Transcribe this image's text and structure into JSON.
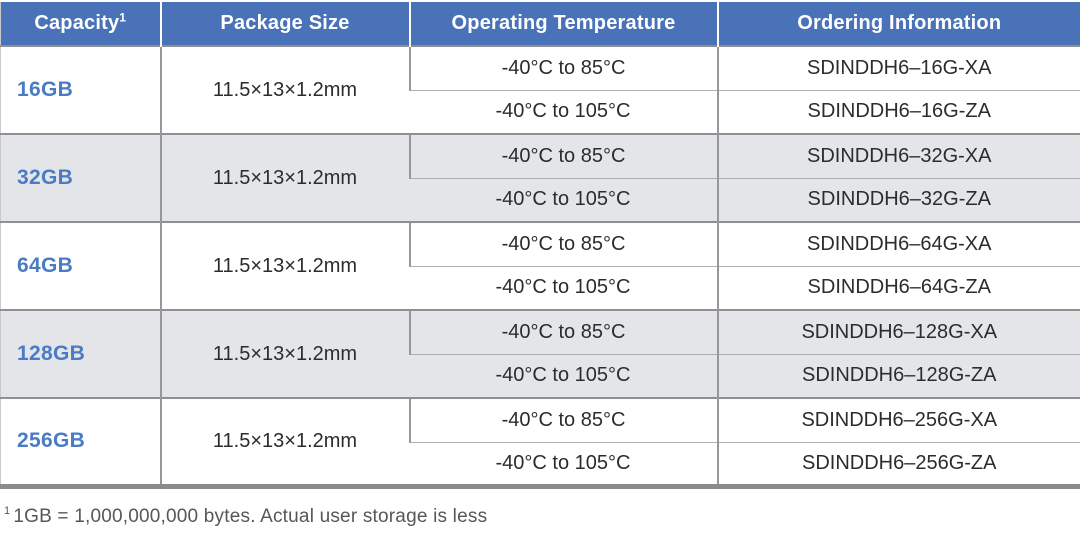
{
  "colors": {
    "header_bg": "#4A72B8",
    "header_text": "#FFFFFF",
    "capacity_text": "#4A7BC4",
    "body_text": "#2B2C30",
    "alt_row_bg": "#E3E5E8",
    "border_gray": "#98989B",
    "footnote_text": "#56575B"
  },
  "table": {
    "headers": [
      {
        "label": "Capacity",
        "superscript": "1"
      },
      {
        "label": "Package Size"
      },
      {
        "label": "Operating Temperature"
      },
      {
        "label": "Ordering Information"
      }
    ],
    "groups": [
      {
        "capacity": "16GB",
        "package_size": "11.5×13×1.2mm",
        "variants": [
          {
            "temperature": "-40°C to 85°C",
            "ordering": "SDINDDH6–16G-XA"
          },
          {
            "temperature": "-40°C to 105°C",
            "ordering": "SDINDDH6–16G-ZA"
          }
        ]
      },
      {
        "capacity": "32GB",
        "package_size": "11.5×13×1.2mm",
        "variants": [
          {
            "temperature": "-40°C to 85°C",
            "ordering": "SDINDDH6–32G-XA"
          },
          {
            "temperature": "-40°C to 105°C",
            "ordering": "SDINDDH6–32G-ZA"
          }
        ]
      },
      {
        "capacity": "64GB",
        "package_size": "11.5×13×1.2mm",
        "variants": [
          {
            "temperature": "-40°C to 85°C",
            "ordering": "SDINDDH6–64G-XA"
          },
          {
            "temperature": "-40°C to 105°C",
            "ordering": "SDINDDH6–64G-ZA"
          }
        ]
      },
      {
        "capacity": "128GB",
        "package_size": "11.5×13×1.2mm",
        "variants": [
          {
            "temperature": "-40°C to 85°C",
            "ordering": "SDINDDH6–128G-XA"
          },
          {
            "temperature": "-40°C to 105°C",
            "ordering": "SDINDDH6–128G-ZA"
          }
        ]
      },
      {
        "capacity": "256GB",
        "package_size": "11.5×13×1.2mm",
        "variants": [
          {
            "temperature": "-40°C to 85°C",
            "ordering": "SDINDDH6–256G-XA"
          },
          {
            "temperature": "-40°C to 105°C",
            "ordering": "SDINDDH6–256G-ZA"
          }
        ]
      }
    ]
  },
  "footnote": {
    "superscript": "1",
    "text": "1GB = 1,000,000,000 bytes. Actual user storage is less"
  }
}
